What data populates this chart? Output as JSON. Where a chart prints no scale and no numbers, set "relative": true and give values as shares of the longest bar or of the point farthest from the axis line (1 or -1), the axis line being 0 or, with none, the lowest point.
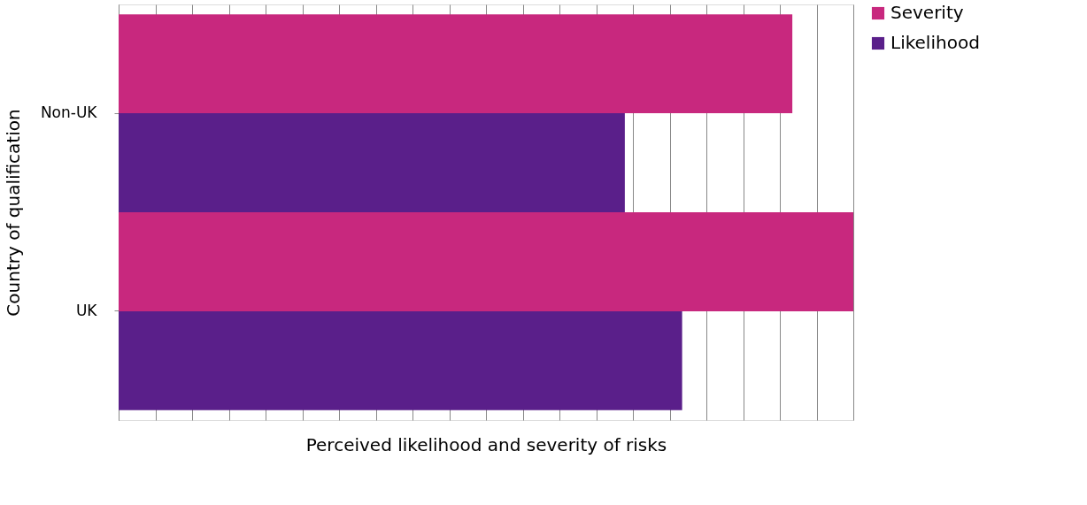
{
  "chart_data": {
    "type": "bar",
    "orientation": "horizontal",
    "relative": true,
    "xlabel": "Perceived likelihood and severity of risks",
    "ylabel": "Country of qualification",
    "categories": [
      "Non-UK",
      "UK"
    ],
    "series": [
      {
        "name": "Severity",
        "color": "#c8287e",
        "values": [
          0.917,
          1
        ]
      },
      {
        "name": "Likelihood",
        "color": "#5a1f8a",
        "values": [
          0.689,
          0.767
        ]
      }
    ],
    "grid": "x",
    "legend": "right"
  }
}
